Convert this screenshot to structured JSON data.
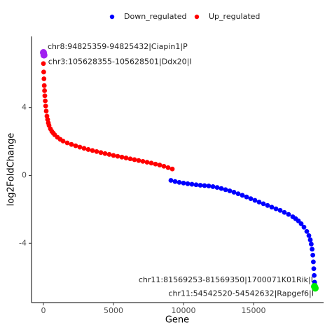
{
  "chart_data": {
    "type": "scatter",
    "xlabel": "Gene",
    "ylabel": "log2FoldChange",
    "xlim": [
      -850,
      20000
    ],
    "ylim": [
      -7.5,
      8.2
    ],
    "xticks": [
      0,
      5000,
      10000,
      15000
    ],
    "yticks": [
      -4,
      0,
      4
    ],
    "grid": false,
    "legend": "top",
    "series": [
      {
        "name": "Down_regulated",
        "color": "#0000ff",
        "x": [
          9100,
          9400,
          9700,
          10000,
          10300,
          10600,
          10900,
          11200,
          11500,
          11800,
          12100,
          12400,
          12700,
          13000,
          13300,
          13600,
          13900,
          14200,
          14500,
          14800,
          15100,
          15400,
          15700,
          16000,
          16300,
          16600,
          16900,
          17200,
          17500,
          17800,
          18000,
          18200,
          18400,
          18600,
          18800,
          18950,
          19050,
          19120,
          19180,
          19230,
          19270,
          19300,
          19330,
          19360,
          19380
        ],
        "values": [
          -0.29,
          -0.36,
          -0.41,
          -0.45,
          -0.49,
          -0.52,
          -0.55,
          -0.58,
          -0.6,
          -0.62,
          -0.66,
          -0.71,
          -0.77,
          -0.84,
          -0.91,
          -0.99,
          -1.08,
          -1.17,
          -1.27,
          -1.37,
          -1.47,
          -1.57,
          -1.67,
          -1.77,
          -1.87,
          -1.97,
          -2.06,
          -2.18,
          -2.3,
          -2.44,
          -2.55,
          -2.68,
          -2.85,
          -3.05,
          -3.3,
          -3.55,
          -3.8,
          -4.05,
          -4.35,
          -4.7,
          -5.1,
          -5.5,
          -5.9,
          -6.3,
          -6.5
        ]
      },
      {
        "name": "Up_regulated",
        "color": "#ff0000",
        "x": [
          0,
          20,
          40,
          60,
          80,
          100,
          130,
          160,
          200,
          250,
          300,
          350,
          400,
          500,
          600,
          700,
          800,
          1000,
          1200,
          1400,
          1700,
          2000,
          2300,
          2600,
          2900,
          3200,
          3500,
          3800,
          4100,
          4400,
          4700,
          5000,
          5300,
          5600,
          5900,
          6200,
          6500,
          6800,
          7100,
          7400,
          7700,
          8000,
          8300,
          8600,
          8900,
          9200
        ],
        "values": [
          6.6,
          6.1,
          5.7,
          5.3,
          5.0,
          4.7,
          4.4,
          4.1,
          3.8,
          3.5,
          3.3,
          3.1,
          2.95,
          2.75,
          2.6,
          2.5,
          2.4,
          2.25,
          2.13,
          2.03,
          1.92,
          1.83,
          1.75,
          1.67,
          1.6,
          1.53,
          1.47,
          1.41,
          1.35,
          1.29,
          1.24,
          1.18,
          1.13,
          1.08,
          1.03,
          0.98,
          0.93,
          0.88,
          0.83,
          0.78,
          0.73,
          0.67,
          0.61,
          0.54,
          0.46,
          0.38
        ]
      }
    ],
    "highlights": [
      {
        "label": "chr8:94825359-94825432|Ciapin1|P",
        "x": 0,
        "y": 7.25,
        "color": "#a020f0"
      },
      {
        "label": "chr3:105628355-105628501|Ddx20|I",
        "x": 40,
        "y": 7.1,
        "color": "#a020f0"
      },
      {
        "label": "chr11:81569253-81569350|1700071K01Rik|I",
        "x": 19350,
        "y": -6.55,
        "color": "#00ee00"
      },
      {
        "label": "chr11:54542520-54542632|Rapgef6|I",
        "x": 19400,
        "y": -6.65,
        "color": "#00ee00"
      }
    ]
  }
}
